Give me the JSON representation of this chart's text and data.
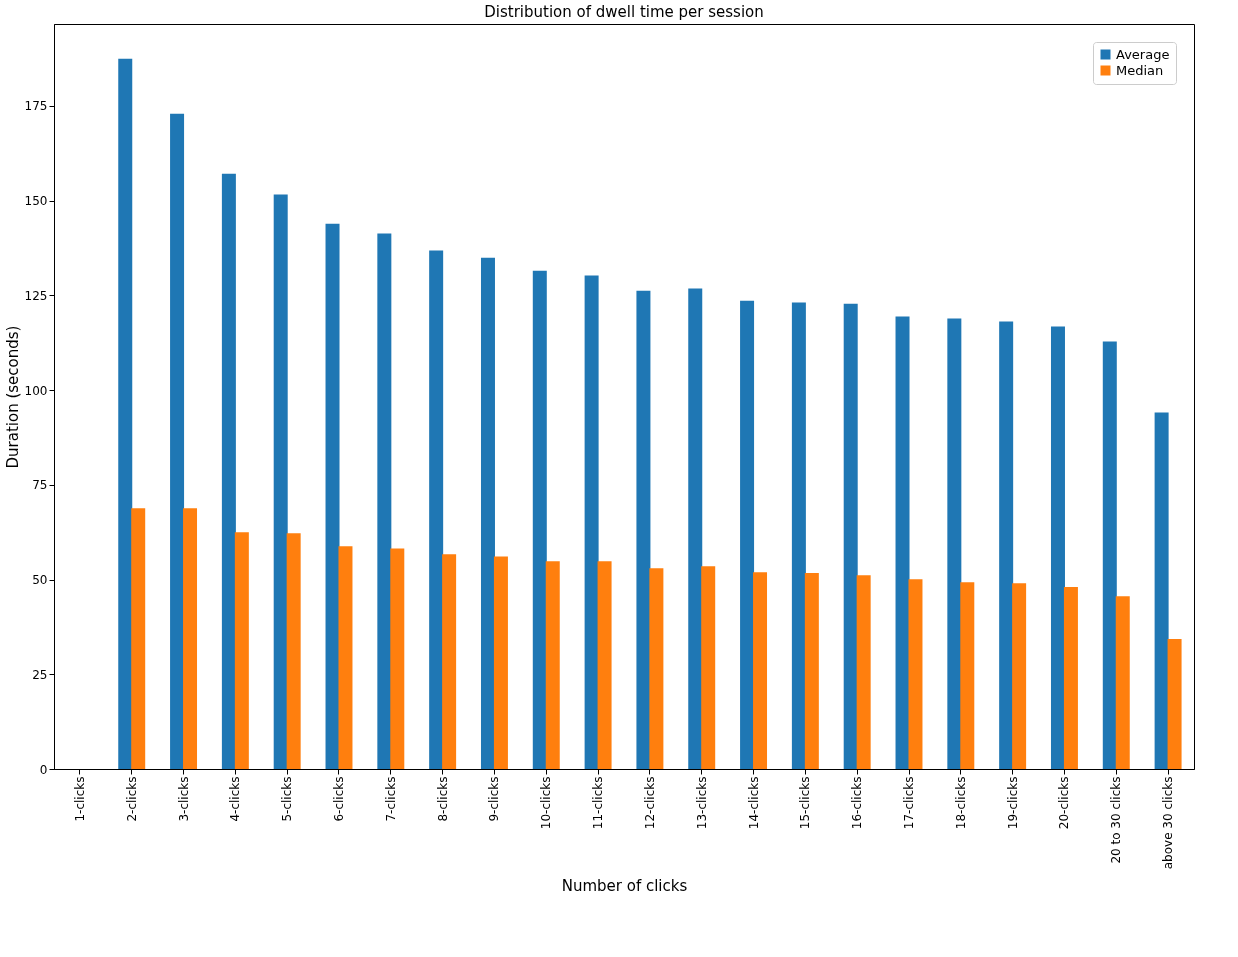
{
  "chart_data": {
    "type": "bar",
    "title": "Distribution of dwell time per session",
    "xlabel": "Number of clicks",
    "ylabel": "Duration (seconds)",
    "categories": [
      "1-clicks",
      "2-clicks",
      "3-clicks",
      "4-clicks",
      "5-clicks",
      "6-clicks",
      "7-clicks",
      "8-clicks",
      "9-clicks",
      "10-clicks",
      "11-clicks",
      "12-clicks",
      "13-clicks",
      "14-clicks",
      "15-clicks",
      "16-clicks",
      "17-clicks",
      "18-clicks",
      "19-clicks",
      "20-clicks",
      "20 to 30 clicks",
      "above 30 clicks"
    ],
    "series": [
      {
        "name": "Average",
        "color": "#1f77b4",
        "values": [
          null,
          187.4,
          172.9,
          157.1,
          151.6,
          143.9,
          141.3,
          136.8,
          134.9,
          131.5,
          130.2,
          126.2,
          126.8,
          123.6,
          123.1,
          122.8,
          119.4,
          118.9,
          118.1,
          116.8,
          112.8,
          94.1
        ]
      },
      {
        "name": "Median",
        "color": "#ff7f0e",
        "values": [
          null,
          68.8,
          68.8,
          62.5,
          62.2,
          58.8,
          58.2,
          56.7,
          56.1,
          54.8,
          54.8,
          53.0,
          53.5,
          51.9,
          51.7,
          51.1,
          50.1,
          49.3,
          49.0,
          48.0,
          45.6,
          34.3
        ]
      }
    ],
    "ylim": [
      0,
      196.6
    ],
    "yticks": [
      0,
      25,
      50,
      75,
      100,
      125,
      150,
      175
    ],
    "grid": false,
    "legend": "top right"
  }
}
